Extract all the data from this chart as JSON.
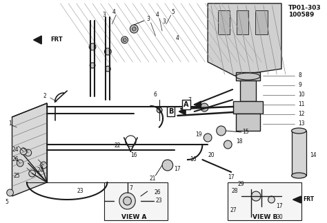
{
  "bg_color": "#f0f0f0",
  "line_color": "#1a1a1a",
  "text_color": "#111111",
  "part_number_line1": "TP01-303",
  "part_number_line2": "100589",
  "view_a_label": "VIEW A",
  "view_b_label": "VIEW B",
  "fs_label": 5.5,
  "fs_partnum": 6.5,
  "white": "#ffffff",
  "gray_light": "#e0e0e0",
  "gray_mid": "#b0b0b0",
  "gray_dark": "#888888",
  "hatch_color": "#aaaaaa"
}
